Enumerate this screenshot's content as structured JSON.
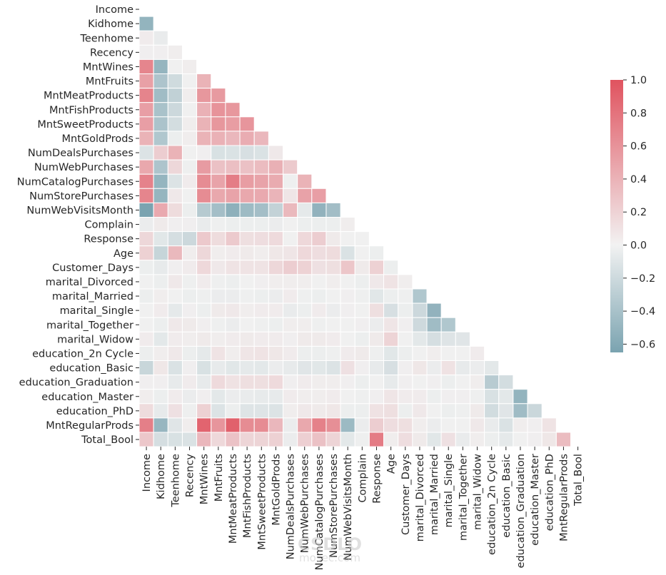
{
  "chart_data": {
    "type": "heatmap",
    "title": "",
    "variables": [
      "Income",
      "Kidhome",
      "Teenhome",
      "Recency",
      "MntWines",
      "MntFruits",
      "MntMeatProducts",
      "MntFishProducts",
      "MntSweetProducts",
      "MntGoldProds",
      "NumDealsPurchases",
      "NumWebPurchases",
      "NumCatalogPurchases",
      "NumStorePurchases",
      "NumWebVisitsMonth",
      "Complain",
      "Response",
      "Age",
      "Customer_Days",
      "marital_Divorced",
      "marital_Married",
      "marital_Single",
      "marital_Together",
      "marital_Widow",
      "education_2n Cycle",
      "education_Basic",
      "education_Graduation",
      "education_Master",
      "education_PhD",
      "MntRegularProds",
      "Total_Bool"
    ],
    "mask": "upper triangle including diagonal",
    "colorbar": {
      "min": -0.65,
      "max": 1.0,
      "ticks": [
        "1.0",
        "0.8",
        "0.6",
        "0.4",
        "0.2",
        "0.0",
        "−0.2",
        "−0.4",
        "−0.6"
      ],
      "tick_values": [
        1.0,
        0.8,
        0.6,
        0.4,
        0.2,
        0.0,
        -0.2,
        -0.4,
        -0.6
      ]
    },
    "colors": {
      "negative": "#7aa3b0",
      "neutral": "#f0f0f0",
      "positive": "#e0535f"
    },
    "rows": [
      [],
      [
        -0.51
      ],
      [
        0.03,
        -0.04
      ],
      [
        0.01,
        0.01,
        0.02
      ],
      [
        0.68,
        -0.5,
        0.0,
        0.02
      ],
      [
        0.51,
        -0.37,
        -0.18,
        0.0,
        0.39
      ],
      [
        0.69,
        -0.44,
        -0.26,
        0.02,
        0.57,
        0.55
      ],
      [
        0.52,
        -0.39,
        -0.2,
        0.0,
        0.4,
        0.59,
        0.57
      ],
      [
        0.52,
        -0.38,
        -0.16,
        0.02,
        0.39,
        0.57,
        0.53,
        0.58
      ],
      [
        0.39,
        -0.35,
        -0.02,
        0.02,
        0.39,
        0.4,
        0.36,
        0.43,
        0.36
      ],
      [
        -0.11,
        0.22,
        0.39,
        0.0,
        0.01,
        -0.13,
        -0.12,
        -0.14,
        -0.12,
        0.05
      ],
      [
        0.46,
        -0.37,
        0.16,
        -0.01,
        0.54,
        0.3,
        0.31,
        0.3,
        0.33,
        0.41,
        0.24
      ],
      [
        0.7,
        -0.5,
        -0.11,
        0.03,
        0.64,
        0.49,
        0.73,
        0.53,
        0.49,
        0.44,
        -0.01,
        0.39
      ],
      [
        0.68,
        -0.5,
        0.05,
        0.0,
        0.64,
        0.46,
        0.49,
        0.46,
        0.45,
        0.38,
        0.07,
        0.5,
        0.52
      ],
      [
        -0.65,
        0.45,
        0.13,
        -0.02,
        -0.32,
        -0.42,
        -0.54,
        -0.45,
        -0.42,
        -0.25,
        0.35,
        -0.06,
        -0.52,
        -0.43
      ],
      [
        -0.03,
        0.04,
        0.01,
        0.01,
        -0.04,
        -0.01,
        -0.02,
        -0.02,
        -0.02,
        -0.03,
        0.0,
        -0.02,
        -0.02,
        -0.02,
        0.02
      ],
      [
        0.16,
        -0.08,
        -0.15,
        -0.2,
        0.25,
        0.13,
        0.24,
        0.11,
        0.12,
        0.14,
        0.0,
        0.15,
        0.22,
        0.04,
        0.0,
        0.0
      ],
      [
        0.2,
        -0.23,
        0.35,
        0.02,
        0.16,
        0.02,
        0.03,
        0.04,
        0.02,
        0.06,
        0.07,
        0.15,
        0.12,
        0.13,
        -0.12,
        0.0,
        -0.02
      ],
      [
        -0.02,
        -0.05,
        0.01,
        0.03,
        0.15,
        0.05,
        0.08,
        0.08,
        0.08,
        0.16,
        0.22,
        0.19,
        0.1,
        0.11,
        0.27,
        0.04,
        0.2,
        -0.02
      ],
      [
        0.0,
        -0.02,
        0.05,
        -0.01,
        0.03,
        -0.01,
        -0.02,
        0.0,
        0.01,
        0.02,
        0.02,
        0.02,
        0.0,
        0.02,
        0.0,
        -0.02,
        0.05,
        0.08,
        0.02
      ],
      [
        -0.02,
        0.02,
        0.0,
        -0.02,
        -0.01,
        -0.03,
        -0.03,
        -0.01,
        -0.02,
        -0.03,
        0.03,
        -0.01,
        -0.02,
        0.0,
        0.01,
        -0.01,
        -0.08,
        -0.02,
        -0.01,
        -0.35
      ],
      [
        0.0,
        0.03,
        -0.06,
        0.01,
        -0.02,
        0.04,
        0.05,
        0.02,
        0.03,
        0.03,
        -0.04,
        -0.02,
        0.03,
        -0.03,
        0.01,
        0.0,
        0.11,
        -0.14,
        -0.02,
        -0.2,
        -0.52
      ],
      [
        0.0,
        -0.02,
        0.05,
        0.04,
        0.01,
        -0.01,
        -0.03,
        0.0,
        -0.01,
        -0.02,
        0.02,
        0.02,
        -0.01,
        0.0,
        0.0,
        0.01,
        -0.03,
        0.07,
        0.01,
        -0.19,
        -0.44,
        -0.35
      ],
      [
        0.03,
        -0.07,
        0.03,
        0.02,
        0.04,
        0.02,
        0.03,
        0.04,
        0.03,
        0.03,
        0.01,
        0.04,
        0.04,
        0.03,
        0.0,
        -0.02,
        0.04,
        0.18,
        0.0,
        -0.07,
        -0.15,
        -0.1,
        -0.09
      ],
      [
        -0.02,
        0.02,
        0.05,
        -0.02,
        -0.06,
        0.08,
        0.02,
        0.07,
        0.08,
        0.06,
        0.03,
        -0.02,
        -0.02,
        -0.01,
        0.03,
        0.04,
        -0.01,
        -0.08,
        -0.02,
        0.0,
        0.02,
        0.0,
        0.0,
        0.03
      ],
      [
        -0.22,
        0.06,
        -0.12,
        0.01,
        -0.13,
        -0.05,
        -0.08,
        -0.06,
        -0.07,
        -0.03,
        -0.05,
        -0.09,
        -0.08,
        -0.11,
        0.1,
        0.01,
        -0.05,
        -0.14,
        0.01,
        0.06,
        -0.03,
        0.09,
        -0.05,
        -0.03,
        -0.07
      ],
      [
        0.01,
        0.01,
        -0.05,
        0.03,
        -0.05,
        0.14,
        0.09,
        0.11,
        0.11,
        0.14,
        0.01,
        0.03,
        0.02,
        0.02,
        0.01,
        -0.02,
        0.0,
        -0.05,
        0.01,
        0.0,
        0.01,
        -0.02,
        0.0,
        0.02,
        -0.31,
        -0.16
      ],
      [
        0.02,
        -0.02,
        0.03,
        -0.03,
        0.01,
        -0.07,
        -0.03,
        -0.04,
        -0.05,
        -0.05,
        0.03,
        0.02,
        0.02,
        0.03,
        0.0,
        -0.01,
        0.01,
        0.07,
        0.03,
        0.03,
        -0.02,
        0.01,
        0.01,
        -0.01,
        -0.13,
        -0.07,
        -0.51
      ],
      [
        0.13,
        -0.05,
        0.1,
        -0.01,
        0.2,
        -0.11,
        -0.02,
        -0.1,
        -0.1,
        -0.11,
        0.02,
        0.05,
        0.04,
        0.06,
        -0.02,
        -0.02,
        0.09,
        0.11,
        -0.02,
        0.05,
        0.0,
        -0.02,
        -0.01,
        0.04,
        -0.17,
        -0.09,
        -0.44,
        -0.21
      ],
      [
        0.72,
        -0.49,
        -0.09,
        0.02,
        0.89,
        0.58,
        0.91,
        0.64,
        0.64,
        0.36,
        -0.03,
        0.46,
        0.71,
        0.62,
        -0.46,
        -0.03,
        0.22,
        0.12,
        0.11,
        0.02,
        -0.03,
        0.0,
        0.0,
        0.05,
        -0.04,
        -0.12,
        0.02,
        0.01,
        0.08
      ],
      [
        0.26,
        -0.15,
        -0.13,
        -0.12,
        0.36,
        0.15,
        0.29,
        0.17,
        0.18,
        0.2,
        -0.03,
        0.21,
        0.3,
        0.18,
        -0.07,
        -0.01,
        0.74,
        0.02,
        0.12,
        0.04,
        -0.08,
        0.1,
        -0.04,
        0.02,
        -0.02,
        -0.06,
        0.0,
        0.01,
        0.06,
        0.33
      ]
    ]
  },
  "watermark": {
    "line1": "CSDLO",
    "line2": "mosec.com"
  }
}
